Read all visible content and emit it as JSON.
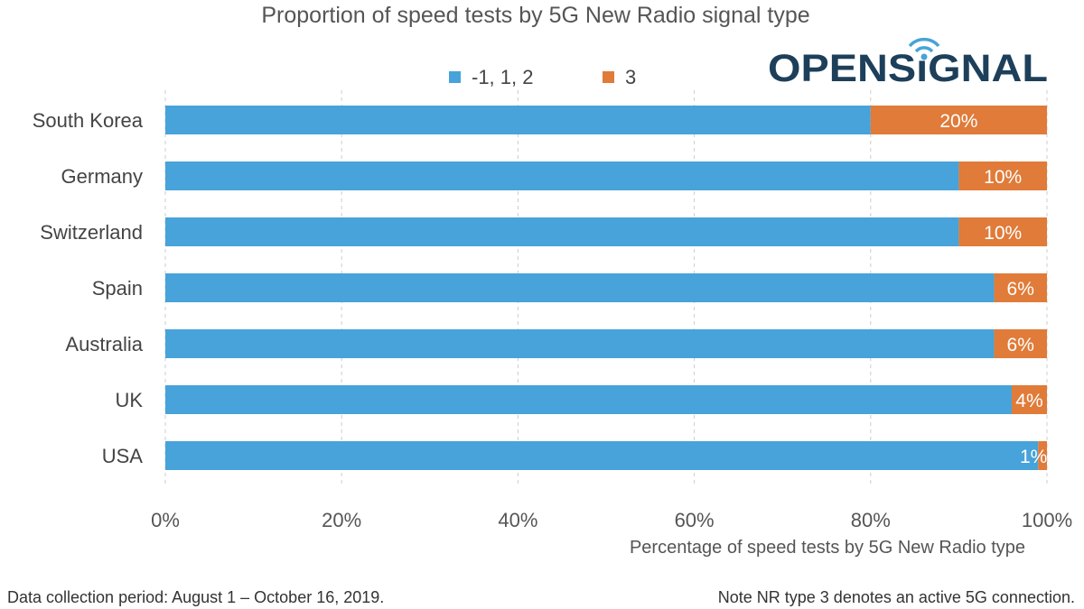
{
  "chart_data": {
    "type": "bar",
    "orientation": "horizontal",
    "stacked": true,
    "title": "Proportion of speed tests by 5G New Radio signal type",
    "xlabel": "Percentage of speed tests by 5G New Radio type",
    "ylabel": "",
    "xlim": [
      0,
      100
    ],
    "x_ticks": [
      "0%",
      "20%",
      "40%",
      "60%",
      "80%",
      "100%"
    ],
    "grid": "vertical dashed",
    "legend_position": "top",
    "categories": [
      "South Korea",
      "Germany",
      "Switzerland",
      "Spain",
      "Australia",
      "UK",
      "USA"
    ],
    "series": [
      {
        "name": "-1, 1, 2",
        "color": "#47a3d9",
        "values": [
          80,
          90,
          90,
          94,
          94,
          96,
          99
        ]
      },
      {
        "name": "3",
        "color": "#e07b39",
        "values": [
          20,
          10,
          10,
          6,
          6,
          4,
          1
        ],
        "labels": [
          "20%",
          "10%",
          "10%",
          "6%",
          "6%",
          "4%",
          "1%"
        ]
      }
    ]
  },
  "logo": {
    "text": "OPENSIGNAL",
    "color": "#1d3f5a",
    "accent": "#47a3d9"
  },
  "footer": {
    "left": "Data collection period: August 1 – October 16, 2019.",
    "right": "Note NR type 3 denotes an active 5G connection."
  }
}
